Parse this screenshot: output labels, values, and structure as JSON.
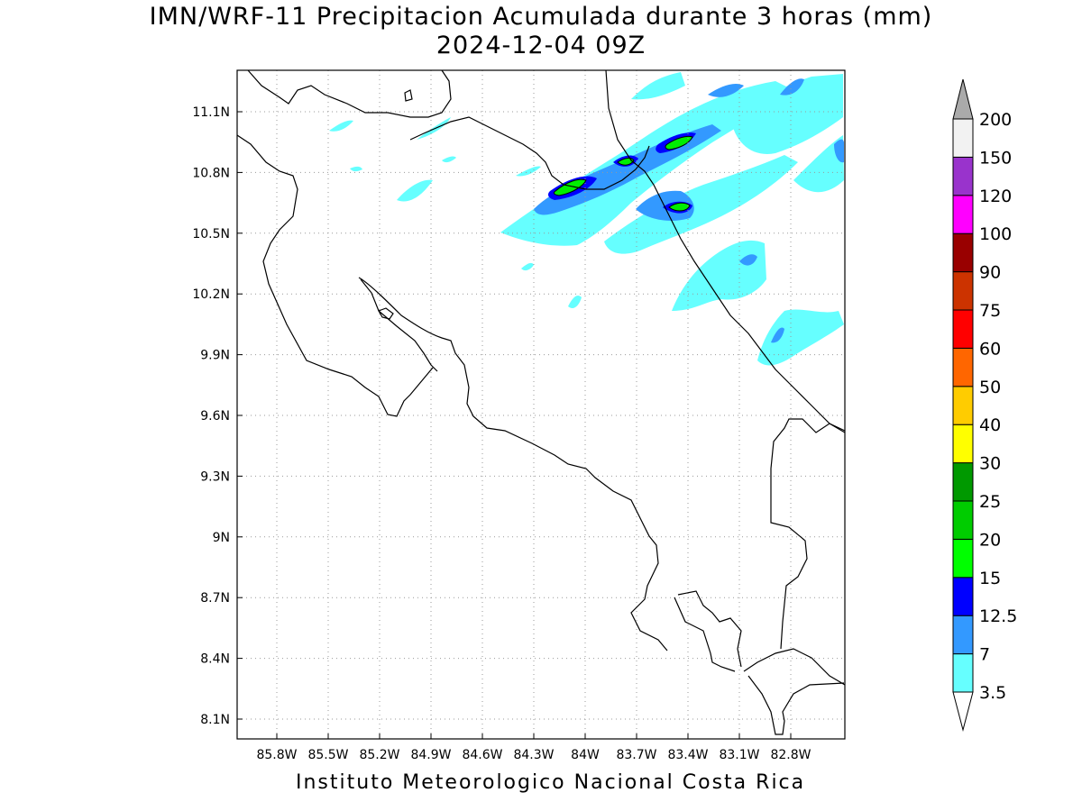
{
  "title_line1": "IMN/WRF-11 Precipitacion Acumulada durante 3 horas (mm)",
  "title_line2": "2024-12-04 09Z",
  "footer": "Instituto Meteorologico Nacional Costa Rica",
  "map": {
    "lon_ticks": [
      "85.8W",
      "85.5W",
      "85.2W",
      "84.9W",
      "84.6W",
      "84.3W",
      "84W",
      "83.7W",
      "83.4W",
      "83.1W",
      "82.8W"
    ],
    "lat_ticks": [
      "11.1N",
      "10.8N",
      "10.5N",
      "10.2N",
      "9.9N",
      "9.6N",
      "9.3N",
      "9N",
      "8.7N",
      "8.4N",
      "8.1N"
    ],
    "grid": "dotted"
  },
  "legend": {
    "levels": [
      {
        "label": "3.5",
        "color": "#66ffff"
      },
      {
        "label": "7",
        "color": "#3399ff"
      },
      {
        "label": "12.5",
        "color": "#0000ff"
      },
      {
        "label": "15",
        "color": "#00ff00"
      },
      {
        "label": "20",
        "color": "#00cc00"
      },
      {
        "label": "25",
        "color": "#009900"
      },
      {
        "label": "30",
        "color": "#ffff00"
      },
      {
        "label": "40",
        "color": "#ffcc00"
      },
      {
        "label": "50",
        "color": "#ff6600"
      },
      {
        "label": "60",
        "color": "#ff0000"
      },
      {
        "label": "75",
        "color": "#cc3300"
      },
      {
        "label": "90",
        "color": "#990000"
      },
      {
        "label": "100",
        "color": "#ff00ff"
      },
      {
        "label": "120",
        "color": "#9933cc"
      },
      {
        "label": "150",
        "color": "#f2f2f2"
      },
      {
        "label": "200",
        "color": "#999999"
      }
    ],
    "segment_colors": [
      "#66ffff",
      "#3399ff",
      "#0000ff",
      "#00ff00",
      "#00cc00",
      "#009900",
      "#ffff00",
      "#ffcc00",
      "#ff6600",
      "#ff0000",
      "#cc3300",
      "#990000",
      "#ff00ff",
      "#9933cc",
      "#f2f2f2"
    ],
    "top_arrow_color": "#aaaaaa",
    "bottom_arrow_color": "#ffffff"
  }
}
